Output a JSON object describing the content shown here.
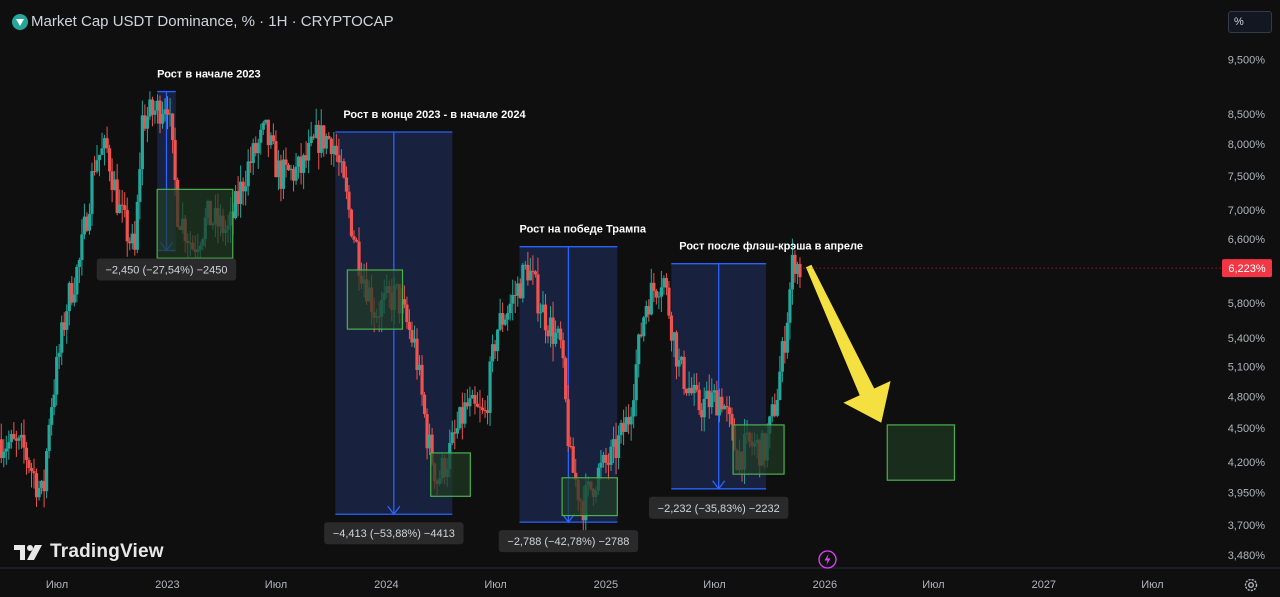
{
  "header": {
    "title": "Market Cap USDT Dominance, % · 1H · CRYPTOCAP",
    "scale_button": "%",
    "brand": "TradingView"
  },
  "colors": {
    "background": "#0f0f0f",
    "up": "#26a69a",
    "down": "#ef5350",
    "measure_fill": "#1c2950",
    "measure_line": "#2962ff",
    "box_fill": "#1f3a23",
    "box_stroke": "#4caf50",
    "arrow": "#f5e042",
    "price_label": "#f23645"
  },
  "icons": [
    "tradingview-logo-icon",
    "settings-gear-icon",
    "lightning-icon",
    "chart-symbol-icon"
  ],
  "chart_data": {
    "type": "candlestick",
    "title": "Market Cap USDT Dominance, % · 1H · CRYPTOCAP",
    "y_scale": "log",
    "y_ticks": [
      "9,500%",
      "8,500%",
      "8,000%",
      "7,500%",
      "7,000%",
      "6,600%",
      "5,800%",
      "5,400%",
      "5,100%",
      "4,800%",
      "4,500%",
      "4,200%",
      "3,950%",
      "3,700%",
      "3,480%"
    ],
    "y_tick_values": [
      9.5,
      8.5,
      8.0,
      7.5,
      7.0,
      6.6,
      5.8,
      5.4,
      5.1,
      4.8,
      4.5,
      4.2,
      3.95,
      3.7,
      3.48
    ],
    "x_ticks": [
      "Июл",
      "2023",
      "Июл",
      "2024",
      "Июл",
      "2025",
      "Июл",
      "2026",
      "Июл",
      "2027",
      "Июл"
    ],
    "x_tick_dates": [
      "2022-07-01",
      "2023-01-01",
      "2023-07-01",
      "2024-01-01",
      "2024-07-01",
      "2025-01-01",
      "2025-07-01",
      "2026-01-01",
      "2026-07-01",
      "2027-01-01",
      "2027-07-01"
    ],
    "x_range": [
      "2022-03-28",
      "2027-10-25"
    ],
    "y_range": [
      3.39,
      9.8
    ],
    "last_price": "6,223%",
    "last_price_value": 6.223,
    "approx_path": [
      {
        "date": "2022-03-28",
        "value": 4.4
      },
      {
        "date": "2022-05-10",
        "value": 4.3
      },
      {
        "date": "2022-06-10",
        "value": 3.9
      },
      {
        "date": "2022-06-20",
        "value": 4.6
      },
      {
        "date": "2022-07-20",
        "value": 5.8
      },
      {
        "date": "2022-08-10",
        "value": 6.3
      },
      {
        "date": "2022-09-05",
        "value": 7.8
      },
      {
        "date": "2022-09-25",
        "value": 7.9
      },
      {
        "date": "2022-10-15",
        "value": 7.0
      },
      {
        "date": "2022-11-10",
        "value": 6.4
      },
      {
        "date": "2022-11-22",
        "value": 8.4
      },
      {
        "date": "2022-12-20",
        "value": 8.6
      },
      {
        "date": "2023-01-03",
        "value": 8.8
      },
      {
        "date": "2023-01-20",
        "value": 7.0
      },
      {
        "date": "2023-02-15",
        "value": 6.5
      },
      {
        "date": "2023-03-12",
        "value": 6.9
      },
      {
        "date": "2023-04-15",
        "value": 6.7
      },
      {
        "date": "2023-05-15",
        "value": 7.6
      },
      {
        "date": "2023-06-15",
        "value": 8.2
      },
      {
        "date": "2023-07-10",
        "value": 7.5
      },
      {
        "date": "2023-08-15",
        "value": 7.6
      },
      {
        "date": "2023-09-10",
        "value": 8.1
      },
      {
        "date": "2023-10-05",
        "value": 8.1
      },
      {
        "date": "2023-10-25",
        "value": 7.3
      },
      {
        "date": "2023-11-20",
        "value": 6.3
      },
      {
        "date": "2023-12-15",
        "value": 5.7
      },
      {
        "date": "2024-01-20",
        "value": 5.9
      },
      {
        "date": "2024-02-20",
        "value": 5.3
      },
      {
        "date": "2024-03-12",
        "value": 4.4
      },
      {
        "date": "2024-03-28",
        "value": 4.05
      },
      {
        "date": "2024-04-15",
        "value": 4.25
      },
      {
        "date": "2024-05-15",
        "value": 4.7
      },
      {
        "date": "2024-06-15",
        "value": 4.6
      },
      {
        "date": "2024-07-05",
        "value": 5.5
      },
      {
        "date": "2024-08-05",
        "value": 5.9
      },
      {
        "date": "2024-08-25",
        "value": 6.25
      },
      {
        "date": "2024-09-20",
        "value": 5.7
      },
      {
        "date": "2024-10-20",
        "value": 5.3
      },
      {
        "date": "2024-11-05",
        "value": 4.2
      },
      {
        "date": "2024-11-25",
        "value": 3.85
      },
      {
        "date": "2024-12-20",
        "value": 4.1
      },
      {
        "date": "2025-01-15",
        "value": 4.25
      },
      {
        "date": "2025-02-10",
        "value": 4.6
      },
      {
        "date": "2025-03-10",
        "value": 5.8
      },
      {
        "date": "2025-04-08",
        "value": 6.15
      },
      {
        "date": "2025-05-05",
        "value": 5.1
      },
      {
        "date": "2025-06-05",
        "value": 4.7
      },
      {
        "date": "2025-07-15",
        "value": 4.8
      },
      {
        "date": "2025-08-10",
        "value": 4.25
      },
      {
        "date": "2025-09-01",
        "value": 4.35
      },
      {
        "date": "2025-09-25",
        "value": 4.3
      },
      {
        "date": "2025-10-15",
        "value": 4.8
      },
      {
        "date": "2025-10-30",
        "value": 5.5
      },
      {
        "date": "2025-11-12",
        "value": 6.4
      },
      {
        "date": "2025-11-20",
        "value": 6.223
      }
    ],
    "annotations": [
      {
        "label": "Рост в начале 2023",
        "measure": "−2,450 (−27,54%) −2450",
        "range": {
          "from": "2022-12-15",
          "to": "2023-01-15",
          "top": 8.9,
          "bottom": 6.45
        },
        "box": {
          "from": "2022-12-15",
          "to": "2023-04-20",
          "top": 7.3,
          "bottom": 6.35
        }
      },
      {
        "label": "Рост в конце 2023 - в начале 2024",
        "measure": "−4,413 (−53,88%) −4413",
        "range": {
          "from": "2023-10-08",
          "to": "2024-04-20",
          "top": 8.2,
          "bottom": 3.78
        },
        "box": {
          "from": "2023-10-28",
          "to": "2024-01-28",
          "top": 6.2,
          "bottom": 5.5
        }
      },
      {
        "label": "",
        "measure": "",
        "range": null,
        "box": {
          "from": "2024-03-15",
          "to": "2024-05-20",
          "top": 4.28,
          "bottom": 3.92
        }
      },
      {
        "label": "Рост на победе Трампа",
        "measure": "−2,788 (−42,78%) −2788",
        "range": {
          "from": "2024-08-10",
          "to": "2025-01-20",
          "top": 6.5,
          "bottom": 3.72
        },
        "box": {
          "from": "2024-10-20",
          "to": "2025-01-20",
          "top": 4.07,
          "bottom": 3.77
        }
      },
      {
        "label": "Рост после флэш-крэша в апреле",
        "measure": "−2,232 (−35,83%) −2232",
        "range": {
          "from": "2025-04-20",
          "to": "2025-09-25",
          "top": 6.28,
          "bottom": 3.98
        },
        "box": {
          "from": "2025-08-01",
          "to": "2025-10-25",
          "top": 4.53,
          "bottom": 4.1
        }
      },
      {
        "label": "",
        "measure": "",
        "range": null,
        "box": {
          "from": "2026-04-15",
          "to": "2026-08-05",
          "top": 4.53,
          "bottom": 4.05
        }
      }
    ]
  }
}
